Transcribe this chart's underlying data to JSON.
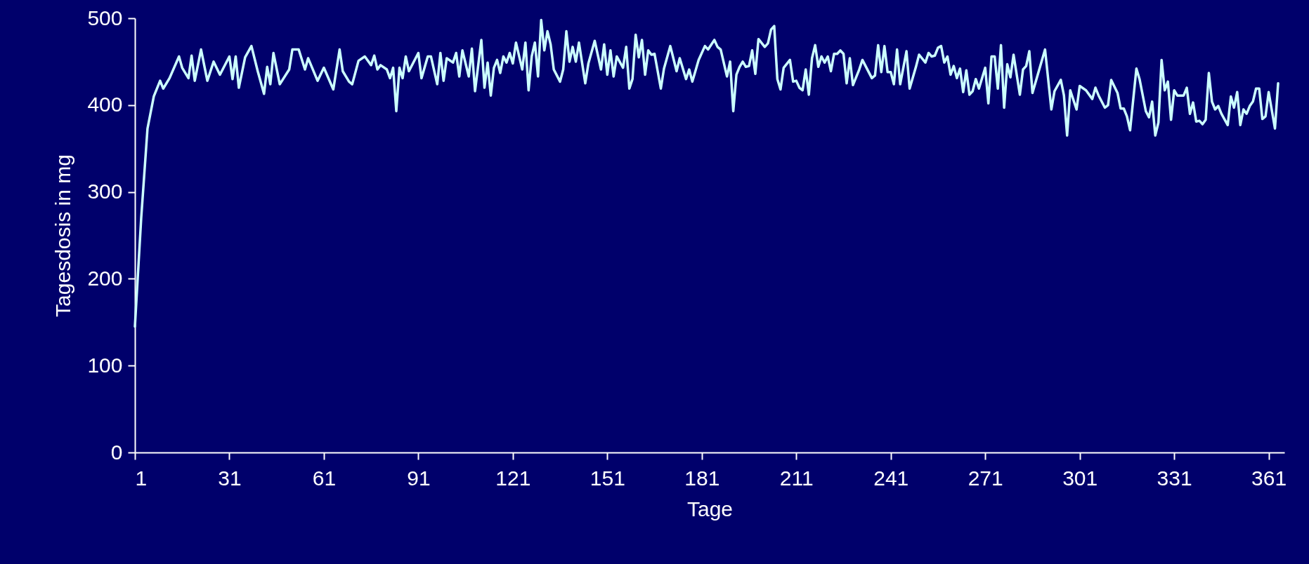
{
  "chart_data": {
    "type": "line",
    "xlabel": "Tage",
    "ylabel": "Tagesdosis in mg",
    "xlim": [
      1,
      366
    ],
    "xticks": [
      1,
      31,
      61,
      91,
      121,
      151,
      181,
      211,
      241,
      271,
      301,
      331,
      361
    ],
    "ylim": [
      0,
      500
    ],
    "yticks": [
      0,
      100,
      200,
      300,
      400,
      500
    ],
    "line_style": "solid",
    "x": [
      1,
      3,
      5,
      7,
      9,
      10,
      12,
      15,
      16,
      18,
      19,
      20,
      22,
      24,
      26,
      28,
      31,
      32,
      33,
      34,
      36,
      38,
      40,
      42,
      43,
      44,
      45,
      47,
      50,
      51,
      53,
      55,
      56,
      59,
      61,
      64,
      66,
      67,
      69,
      70,
      72,
      74,
      76,
      77,
      78,
      79,
      81,
      82,
      83,
      84,
      85,
      86,
      87,
      88,
      91,
      92,
      94,
      95,
      97,
      98,
      99,
      100,
      102,
      103,
      104,
      105,
      107,
      108,
      109,
      111,
      112,
      113,
      114,
      115,
      116,
      117,
      118,
      119,
      120,
      121,
      122,
      124,
      125,
      126,
      127,
      128,
      129,
      130,
      131,
      132,
      133,
      134,
      136,
      137,
      138,
      139,
      140,
      141,
      142,
      144,
      145,
      147,
      149,
      150,
      151,
      152,
      153,
      154,
      156,
      157,
      158,
      159,
      160,
      161,
      162,
      163,
      164,
      165,
      166,
      168,
      169,
      171,
      173,
      174,
      176,
      177,
      178,
      180,
      182,
      183,
      185,
      186,
      187,
      189,
      190,
      191,
      192,
      193,
      194,
      195,
      196,
      197,
      198,
      199,
      201,
      202,
      203,
      204,
      205,
      206,
      207,
      209,
      210,
      211,
      212,
      213,
      214,
      215,
      216,
      217,
      218,
      219,
      220,
      221,
      222,
      223,
      224,
      225,
      226,
      227,
      228,
      229,
      231,
      232,
      235,
      236,
      237,
      238,
      239,
      240,
      241,
      242,
      243,
      244,
      246,
      247,
      249,
      250,
      252,
      253,
      254,
      255,
      256,
      257,
      258,
      259,
      260,
      261,
      262,
      263,
      264,
      265,
      266,
      267,
      268,
      269,
      271,
      272,
      273,
      274,
      275,
      276,
      277,
      278,
      279,
      280,
      282,
      283,
      284,
      285,
      286,
      290,
      292,
      293,
      295,
      296,
      297,
      298,
      300,
      301,
      303,
      305,
      306,
      307,
      309,
      310,
      311,
      313,
      314,
      315,
      316,
      317,
      319,
      320,
      322,
      323,
      324,
      325,
      326,
      327,
      328,
      329,
      330,
      331,
      332,
      334,
      335,
      336,
      337,
      338,
      339,
      340,
      341,
      342,
      343,
      344,
      345,
      346,
      348,
      349,
      350,
      351,
      352,
      353,
      354,
      355,
      356,
      357,
      358,
      359,
      360,
      361,
      363,
      364
    ],
    "series": [
      {
        "color": "#ccffff",
        "values": [
          145,
          270,
          373,
          410,
          428,
          419,
          431,
          456,
          443,
          431,
          457,
          428,
          464,
          428,
          450,
          435,
          456,
          430,
          456,
          420,
          455,
          468,
          439,
          413,
          444,
          424,
          460,
          424,
          441,
          464,
          464,
          441,
          454,
          428,
          443,
          418,
          464,
          439,
          427,
          424,
          451,
          456,
          446,
          457,
          441,
          446,
          441,
          431,
          443,
          393,
          443,
          431,
          456,
          439,
          460,
          431,
          456,
          456,
          424,
          460,
          428,
          454,
          449,
          460,
          433,
          463,
          433,
          465,
          416,
          475,
          420,
          449,
          411,
          443,
          452,
          437,
          456,
          449,
          460,
          448,
          472,
          441,
          472,
          417,
          456,
          472,
          433,
          498,
          463,
          485,
          470,
          441,
          427,
          441,
          485,
          450,
          467,
          450,
          472,
          425,
          448,
          474,
          441,
          470,
          435,
          463,
          433,
          456,
          443,
          467,
          419,
          430,
          481,
          455,
          475,
          435,
          463,
          458,
          459,
          419,
          442,
          468,
          439,
          454,
          430,
          441,
          427,
          452,
          468,
          464,
          475,
          467,
          464,
          433,
          450,
          393,
          435,
          444,
          450,
          444,
          445,
          463,
          436,
          476,
          467,
          471,
          487,
          491,
          430,
          418,
          443,
          452,
          427,
          428,
          420,
          417,
          441,
          412,
          454,
          469,
          444,
          456,
          449,
          456,
          439,
          459,
          459,
          463,
          459,
          425,
          454,
          423,
          441,
          452,
          431,
          434,
          469,
          438,
          468,
          438,
          438,
          424,
          464,
          424,
          462,
          419,
          444,
          458,
          449,
          460,
          456,
          457,
          466,
          468,
          449,
          456,
          435,
          445,
          431,
          442,
          415,
          440,
          412,
          416,
          430,
          419,
          443,
          402,
          456,
          456,
          419,
          469,
          397,
          447,
          432,
          458,
          412,
          441,
          445,
          462,
          414,
          464,
          395,
          416,
          429,
          411,
          365,
          417,
          395,
          422,
          417,
          407,
          420,
          411,
          397,
          400,
          429,
          414,
          396,
          396,
          387,
          371,
          442,
          430,
          393,
          386,
          404,
          365,
          380,
          452,
          417,
          427,
          383,
          417,
          411,
          411,
          420,
          390,
          403,
          381,
          382,
          378,
          383,
          437,
          404,
          395,
          399,
          390,
          377,
          410,
          397,
          415,
          377,
          395,
          390,
          399,
          404,
          419,
          419,
          384,
          387,
          415,
          373,
          425
        ]
      }
    ]
  }
}
